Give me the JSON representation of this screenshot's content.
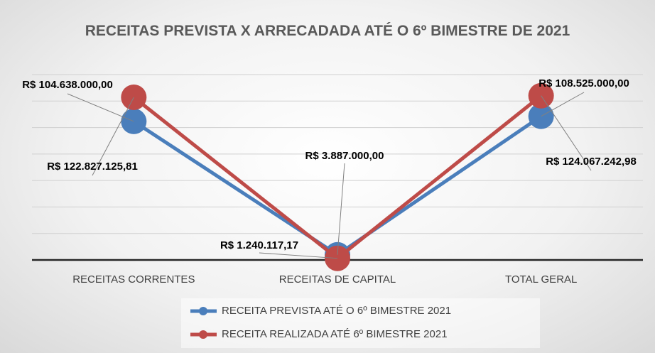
{
  "chart_data": {
    "type": "line",
    "title": "RECEITAS PREVISTA X ARRECADADA ATÉ O 6º BIMESTRE DE 2021",
    "categories": [
      "RECEITAS CORRENTES",
      "RECEITAS DE CAPITAL",
      "TOTAL GERAL"
    ],
    "series": [
      {
        "name": "RECEITA PREVISTA ATÉ O 6º BIMESTRE 2021",
        "color": "#4a7ebb",
        "values": [
          104638000,
          3887000,
          108525000
        ],
        "value_labels": [
          "R$ 104.638.000,00",
          "R$ 3.887.000,00",
          "R$ 108.525.000,00"
        ]
      },
      {
        "name": "RECEITA REALIZADA ATÉ 6º BIMESTRE 2021",
        "color": "#be4b48",
        "values": [
          122827125.81,
          1240117.17,
          124067242.98
        ],
        "value_labels": [
          "R$ 122.827.125,81",
          "R$ 1.240.117,17",
          "R$ 124.067.242,98"
        ]
      }
    ],
    "ylim": [
      0,
      140000000
    ],
    "yticks": [
      0,
      20000000,
      40000000,
      60000000,
      80000000,
      100000000,
      120000000,
      140000000
    ],
    "grid": true
  }
}
